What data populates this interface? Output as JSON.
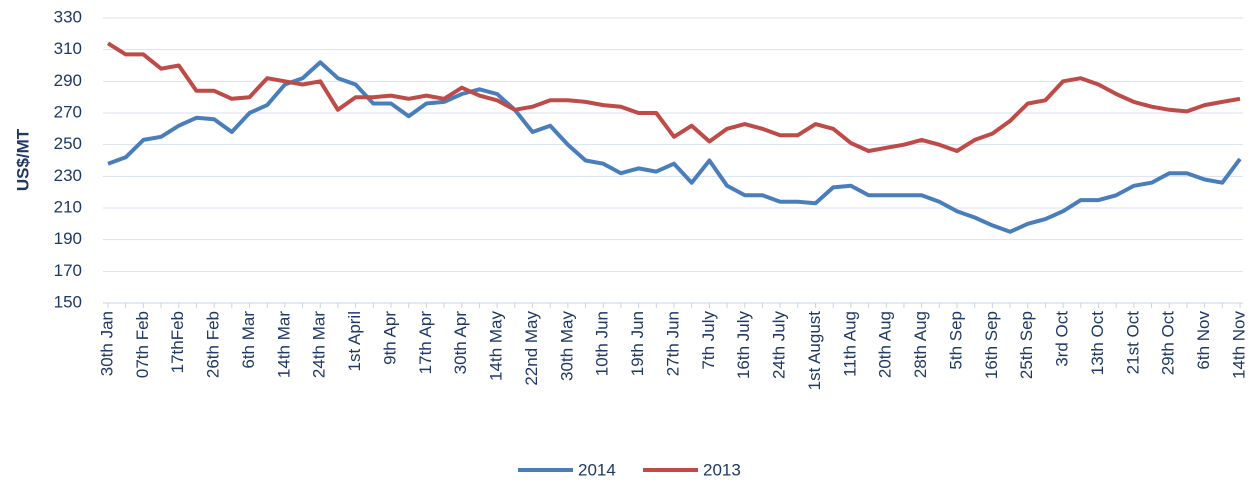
{
  "chart_data": {
    "type": "line",
    "y_label": "US$/MT",
    "categories": [
      "30th Jan",
      null,
      "07th Feb",
      null,
      "17thFeb",
      null,
      "26th Feb",
      null,
      "6th Mar",
      null,
      "14th Mar",
      null,
      "24th Mar",
      null,
      "1st April",
      null,
      "9th Apr",
      null,
      "17th Apr",
      null,
      "30th Apr",
      null,
      "14th May",
      null,
      "22nd May",
      null,
      "30th May",
      null,
      "10th Jun",
      null,
      "19th Jun",
      null,
      "27th Jun",
      null,
      "7th July",
      null,
      "16th July",
      null,
      "24th July",
      null,
      "1st August",
      null,
      "11th Aug",
      null,
      "20th Aug",
      null,
      "28th Aug",
      null,
      "5th Sep",
      null,
      "16th Sep",
      null,
      "25th Sep",
      null,
      "3rd Oct",
      null,
      "13th Oct",
      null,
      "21st Oct",
      null,
      "29th Oct",
      null,
      "6th Nov",
      null,
      "14th Nov"
    ],
    "series": [
      {
        "name": "2014",
        "color": "#4a7ebb",
        "values": [
          238,
          242,
          253,
          255,
          262,
          267,
          266,
          258,
          270,
          275,
          288,
          292,
          302,
          292,
          288,
          276,
          276,
          268,
          276,
          277,
          282,
          285,
          282,
          272,
          258,
          262,
          250,
          240,
          238,
          232,
          235,
          233,
          238,
          226,
          240,
          224,
          218,
          218,
          214,
          214,
          213,
          223,
          224,
          218,
          218,
          218,
          218,
          214,
          208,
          204,
          199,
          195,
          200,
          203,
          208,
          215,
          215,
          218,
          224,
          226,
          232,
          232,
          228,
          226,
          241
        ]
      },
      {
        "name": "2013",
        "color": "#be4b48",
        "values": [
          314,
          307,
          307,
          298,
          300,
          284,
          284,
          279,
          280,
          292,
          290,
          288,
          290,
          272,
          280,
          280,
          281,
          279,
          281,
          279,
          286,
          281,
          278,
          272,
          274,
          278,
          278,
          277,
          275,
          274,
          270,
          270,
          255,
          262,
          252,
          260,
          263,
          260,
          256,
          256,
          263,
          260,
          251,
          246,
          248,
          250,
          253,
          250,
          246,
          253,
          257,
          265,
          276,
          278,
          290,
          292,
          288,
          282,
          277,
          274,
          272,
          271,
          275,
          277,
          279
        ]
      }
    ],
    "ylim": [
      150,
      330
    ],
    "yticks": [
      150,
      170,
      190,
      210,
      230,
      250,
      270,
      290,
      310,
      330
    ],
    "grid": true,
    "legend": "bottom"
  }
}
